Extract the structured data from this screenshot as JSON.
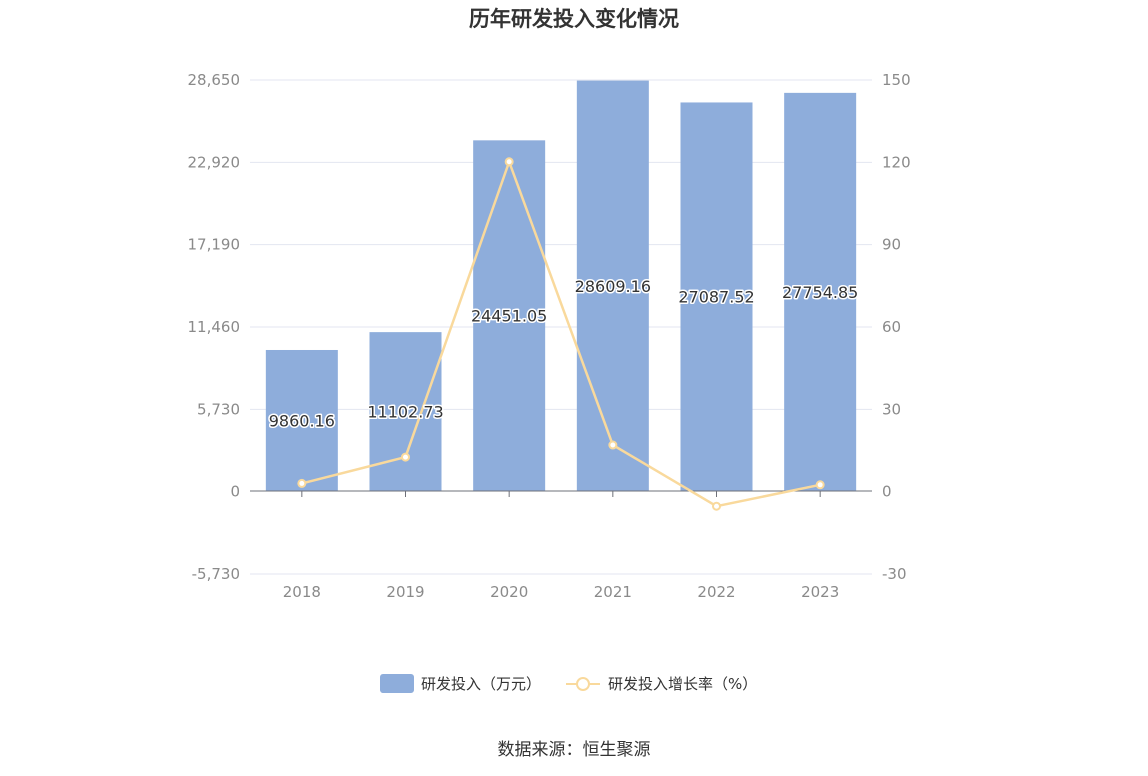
{
  "chart_data": {
    "type": "bar",
    "title": "历年研发投入变化情况",
    "categories": [
      "2018",
      "2019",
      "2020",
      "2021",
      "2022",
      "2023"
    ],
    "series": [
      {
        "name": "研发投入（万元）",
        "type": "bar",
        "axis": "left",
        "color": "#8eaddb",
        "values": [
          9860.16,
          11102.73,
          24451.05,
          28609.16,
          27087.52,
          27754.85
        ],
        "labels": [
          "9860.16",
          "11102.73",
          "24451.05",
          "28609.16",
          "27087.52",
          "27754.85"
        ]
      },
      {
        "name": "研发投入增长率（%）",
        "type": "line",
        "axis": "right",
        "color": "#f9d99c",
        "values": [
          3,
          12.6,
          120.2,
          17,
          -5.3,
          2.5
        ]
      }
    ],
    "y_left": {
      "range": [
        -5730,
        28650
      ],
      "ticks": [
        -5730,
        0,
        5730,
        11460,
        17190,
        22920,
        28650
      ],
      "tick_labels": [
        "-5,730",
        "0",
        "5,730",
        "11,460",
        "17,190",
        "22,920",
        "28,650"
      ]
    },
    "y_right": {
      "range": [
        -30,
        150
      ],
      "ticks": [
        -30,
        0,
        30,
        60,
        90,
        120,
        150
      ],
      "tick_labels": [
        "-30",
        "0",
        "30",
        "60",
        "90",
        "120",
        "150"
      ]
    },
    "grid": true,
    "legend_position": "bottom"
  },
  "source": "数据来源：恒生聚源",
  "colors": {
    "bar": "#8eaddb",
    "line": "#f9d99c",
    "grid": "#e3e6f0",
    "axis": "#6e7079",
    "tick_text": "#8a8a8a"
  }
}
